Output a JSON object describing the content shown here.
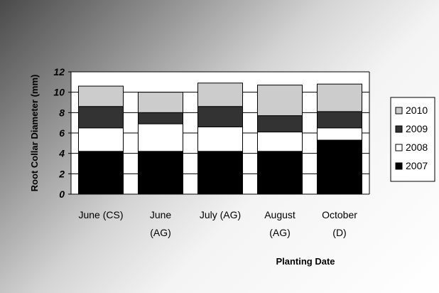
{
  "chart_data": {
    "type": "bar",
    "stacked": true,
    "categories": [
      [
        "June (CS)"
      ],
      [
        "June",
        "(AG)"
      ],
      [
        "July (AG)"
      ],
      [
        "August",
        "(AG)"
      ],
      [
        "October",
        "(D)"
      ]
    ],
    "series": [
      {
        "name": "2007",
        "color": "#000000",
        "values": [
          4.2,
          4.2,
          4.2,
          4.2,
          5.3
        ]
      },
      {
        "name": "2008",
        "color": "#ffffff",
        "values": [
          2.3,
          2.7,
          2.4,
          1.9,
          1.2
        ]
      },
      {
        "name": "2009",
        "color": "#333333",
        "values": [
          2.1,
          1.1,
          2.0,
          1.6,
          1.6
        ]
      },
      {
        "name": "2010",
        "color": "#cccccc",
        "values": [
          2.0,
          2.0,
          2.3,
          3.0,
          2.7
        ]
      }
    ],
    "xlabel": "Planting Date",
    "ylabel": "Root Collar Diameter (mm)",
    "ylim": [
      0,
      12
    ],
    "yticks": [
      "0",
      "2",
      "4",
      "6",
      "8",
      "10",
      "12"
    ],
    "grid": true,
    "legend_position": "right"
  }
}
